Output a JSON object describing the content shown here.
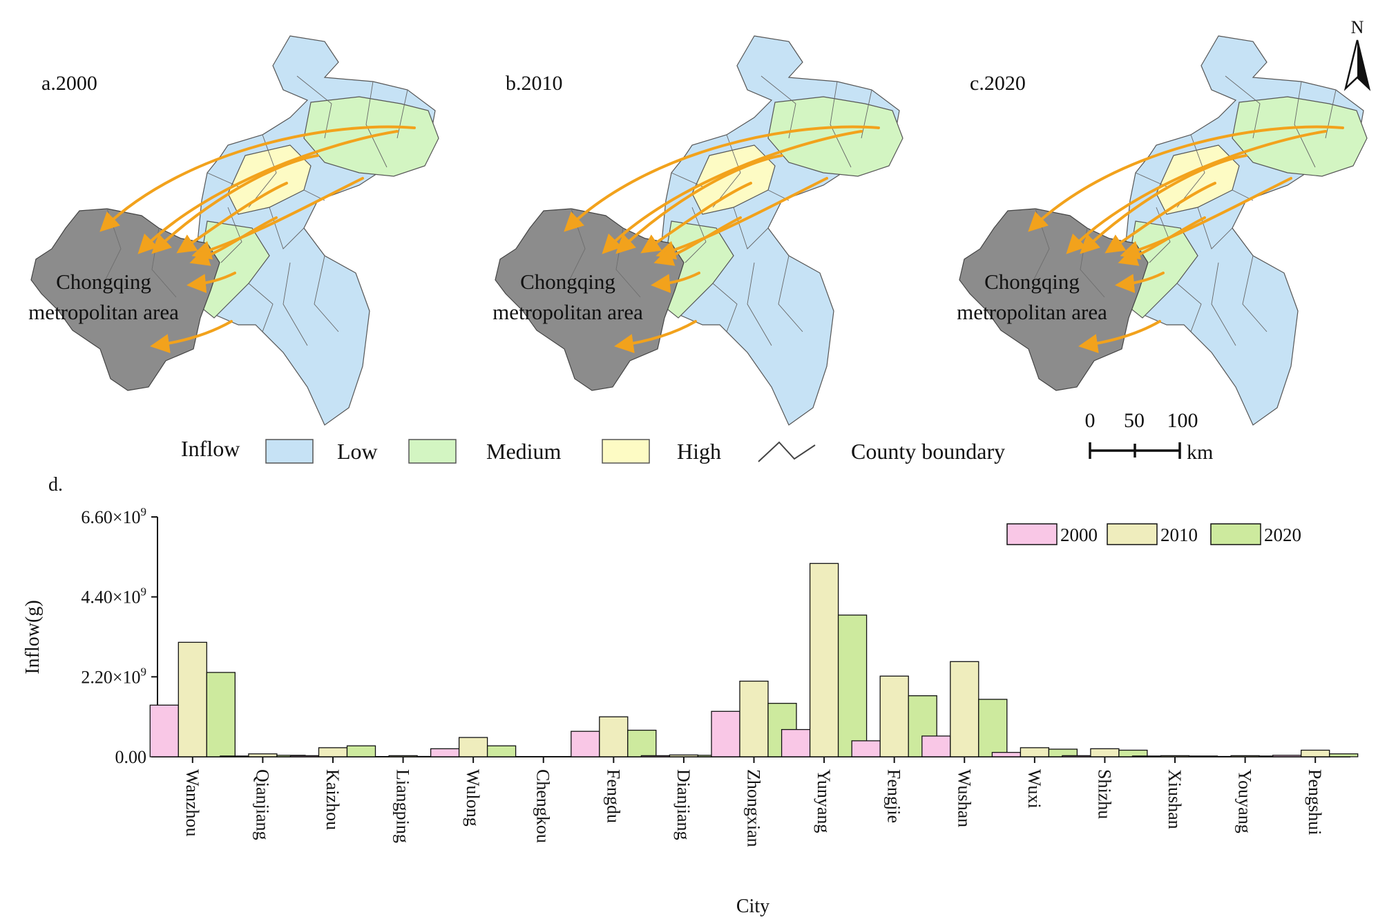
{
  "panels": [
    {
      "label": "a.2000",
      "area_label_1": "Chongqing",
      "area_label_2": "metropolitan area"
    },
    {
      "label": "b.2010",
      "area_label_1": "Chongqing",
      "area_label_2": "metropolitan area"
    },
    {
      "label": "c.2020",
      "area_label_1": "Chongqing",
      "area_label_2": "metropolitan area"
    }
  ],
  "north_label": "N",
  "legend": {
    "title": "Inflow",
    "low": "Low",
    "medium": "Medium",
    "high": "High",
    "boundary": "County boundary",
    "colors": {
      "low": "#c6e2f5",
      "medium": "#d3f5c2",
      "high": "#fdfbc4",
      "metro": "#8c8c8c",
      "arrow": "#f2a21c"
    }
  },
  "scale_bar": {
    "t0": "0",
    "t1": "50",
    "t2": "100",
    "unit": "km"
  },
  "chart_panel_label": "d.",
  "chart_data": {
    "type": "bar",
    "title": "",
    "xlabel": "City",
    "ylabel": "Inflow(g)",
    "ylim": [
      0,
      6600000000.0
    ],
    "yticks": [
      0,
      2200000000.0,
      4400000000.0,
      6600000000.0
    ],
    "ytick_labels": [
      {
        "mantissa": "0.00",
        "exp": ""
      },
      {
        "mantissa": "2.20×10",
        "exp": "9"
      },
      {
        "mantissa": "4.40×10",
        "exp": "9"
      },
      {
        "mantissa": "6.60×10",
        "exp": "9"
      }
    ],
    "categories": [
      "Wanzhou",
      "Qianjiang",
      "Kaizhou",
      "Liangping",
      "Wulong",
      "Chengkou",
      "Fengdu",
      "Dianjiang",
      "Zhongxian",
      "Yunyang",
      "Fengjie",
      "Wushan",
      "Wuxi",
      "Shizhu",
      "Xiushan",
      "Youyang",
      "Pengshui"
    ],
    "series": [
      {
        "name": "2000",
        "color": "#f9c7e6",
        "values": [
          1420000000.0,
          20000000.0,
          30000000.0,
          0.0,
          220000000.0,
          0.0,
          700000000.0,
          30000000.0,
          1250000000.0,
          750000000.0,
          440000000.0,
          570000000.0,
          120000000.0,
          30000000.0,
          20000000.0,
          10000000.0,
          40000000.0
        ]
      },
      {
        "name": "2010",
        "color": "#efedbd",
        "values": [
          3150000000.0,
          80000000.0,
          250000000.0,
          30000000.0,
          530000000.0,
          0.0,
          1100000000.0,
          50000000.0,
          2080000000.0,
          5320000000.0,
          2220000000.0,
          2620000000.0,
          250000000.0,
          220000000.0,
          30000000.0,
          30000000.0,
          180000000.0
        ]
      },
      {
        "name": "2020",
        "color": "#cdea9e",
        "values": [
          2320000000.0,
          40000000.0,
          300000000.0,
          10000000.0,
          300000000.0,
          0.0,
          730000000.0,
          40000000.0,
          1470000000.0,
          3900000000.0,
          1680000000.0,
          1580000000.0,
          210000000.0,
          180000000.0,
          20000000.0,
          20000000.0,
          80000000.0
        ]
      }
    ],
    "legend_position": "top-right"
  }
}
